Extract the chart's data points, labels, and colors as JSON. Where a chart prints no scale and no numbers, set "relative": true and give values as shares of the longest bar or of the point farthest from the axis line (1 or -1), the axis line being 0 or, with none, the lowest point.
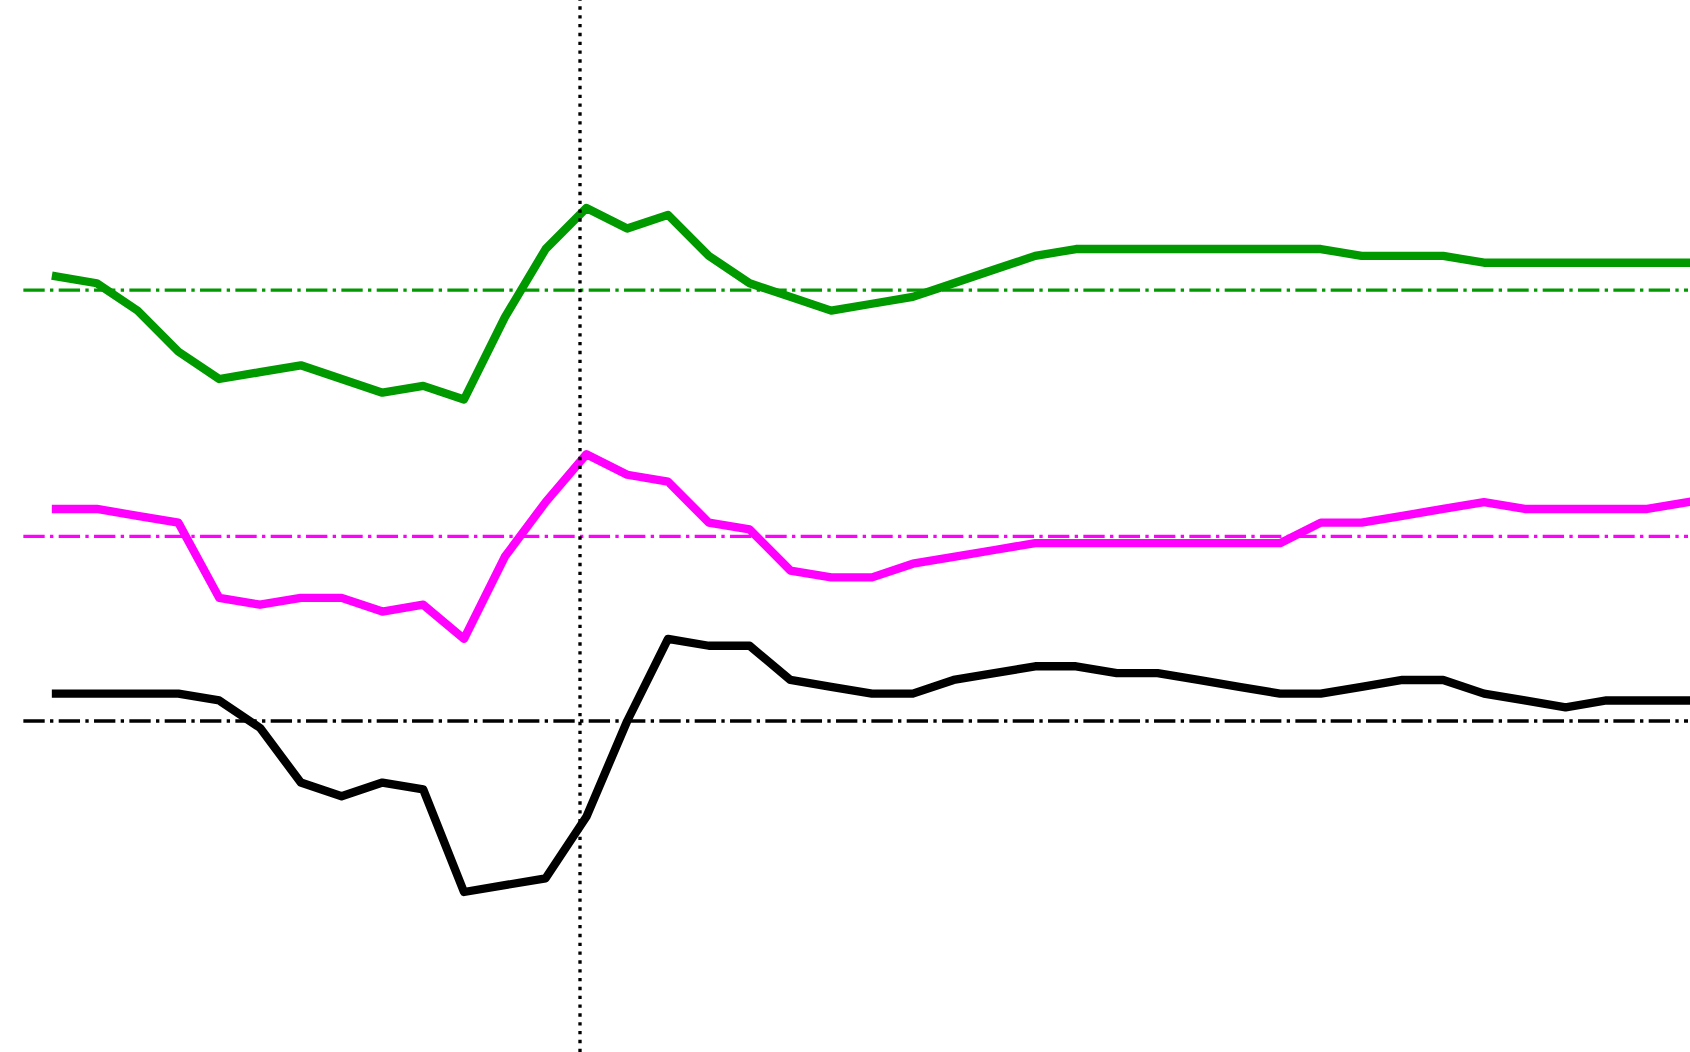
{
  "chart_data": {
    "type": "line",
    "relative": true,
    "line_style": "solid",
    "marker": "none",
    "categories": [
      null,
      null,
      null,
      null,
      null,
      null,
      null,
      null,
      null,
      null,
      null,
      null,
      null,
      null,
      null,
      null,
      null,
      null,
      null,
      null,
      null,
      null,
      null,
      null,
      null,
      null,
      null,
      null,
      null,
      null,
      null,
      null,
      null,
      null,
      null,
      null,
      null,
      null,
      null,
      null,
      null
    ],
    "series": [
      {
        "color": "#009900",
        "values": [
          0.9,
          0.89,
          0.85,
          0.79,
          0.75,
          0.76,
          0.77,
          0.75,
          0.73,
          0.74,
          0.72,
          0.84,
          0.94,
          1.0,
          0.97,
          0.99,
          0.93,
          0.89,
          0.87,
          0.85,
          0.86,
          0.87,
          0.89,
          0.91,
          0.93,
          0.94,
          0.94,
          0.94,
          0.94,
          0.94,
          0.94,
          0.94,
          0.93,
          0.93,
          0.93,
          0.92,
          0.92,
          0.92,
          0.92,
          0.92,
          0.92
        ]
      },
      {
        "color": "#ff00ff",
        "values": [
          0.56,
          0.56,
          0.55,
          0.54,
          0.43,
          0.42,
          0.43,
          0.43,
          0.41,
          0.42,
          0.37,
          0.49,
          0.57,
          0.64,
          0.61,
          0.6,
          0.54,
          0.53,
          0.47,
          0.46,
          0.46,
          0.48,
          0.49,
          0.5,
          0.51,
          0.51,
          0.51,
          0.51,
          0.51,
          0.51,
          0.51,
          0.54,
          0.54,
          0.55,
          0.56,
          0.57,
          0.56,
          0.56,
          0.56,
          0.56,
          0.57
        ]
      },
      {
        "color": "#000000",
        "values": [
          0.29,
          0.29,
          0.29,
          0.29,
          0.28,
          0.24,
          0.16,
          0.14,
          0.16,
          0.15,
          0.0,
          0.01,
          0.02,
          0.11,
          0.25,
          0.37,
          0.36,
          0.36,
          0.31,
          0.3,
          0.29,
          0.29,
          0.31,
          0.32,
          0.33,
          0.33,
          0.32,
          0.32,
          0.31,
          0.3,
          0.29,
          0.29,
          0.3,
          0.31,
          0.31,
          0.29,
          0.28,
          0.27,
          0.28,
          0.28,
          0.28
        ]
      }
    ],
    "ref_lines": [
      {
        "axis": "y",
        "value": 0.88,
        "color": "#009900",
        "line_style": "dashdot"
      },
      {
        "axis": "y",
        "value": 0.52,
        "color": "#ff00ff",
        "line_style": "dashdot"
      },
      {
        "axis": "y",
        "value": 0.25,
        "color": "#000000",
        "line_style": "dashdot"
      }
    ]
  }
}
